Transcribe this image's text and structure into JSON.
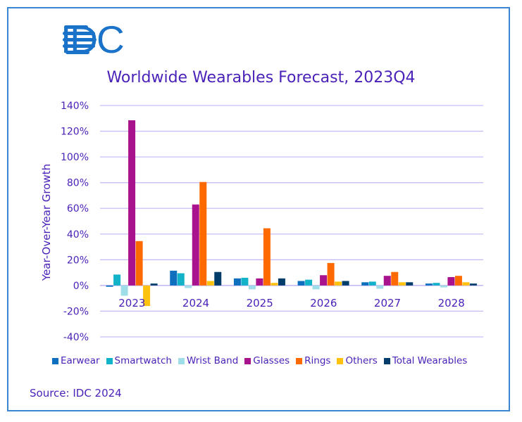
{
  "logo": {
    "text": "IDC",
    "color": "#1a73c8"
  },
  "chart_data": {
    "type": "bar",
    "title": "Worldwide Wearables Forecast, 2023Q4",
    "xlabel": "",
    "ylabel": "Year-Over-Year Growth",
    "ylim": [
      -40,
      140
    ],
    "yticks": [
      140,
      120,
      100,
      80,
      60,
      40,
      20,
      0,
      -20,
      -40
    ],
    "ytick_labels": [
      "140%",
      "120%",
      "100%",
      "80%",
      "60%",
      "40%",
      "20%",
      "0%",
      "-20%",
      "-40%"
    ],
    "grid": true,
    "legend_position": "bottom",
    "categories": [
      "2023",
      "2024",
      "2025",
      "2026",
      "2027",
      "2028"
    ],
    "series": [
      {
        "name": "Earwear",
        "color": "#0f6fbf",
        "values": [
          -1,
          11.5,
          5.5,
          3.5,
          2.5,
          1.5
        ]
      },
      {
        "name": "Smartwatch",
        "color": "#12b3c9",
        "values": [
          8.5,
          9.5,
          6,
          4.5,
          3,
          2
        ]
      },
      {
        "name": "Wrist Band",
        "color": "#9fdde8",
        "values": [
          -8,
          -2,
          -3,
          -3,
          -2.5,
          -1.5
        ]
      },
      {
        "name": "Glasses",
        "color": "#a8128c",
        "values": [
          128.5,
          63,
          5.5,
          8,
          7.5,
          6.5
        ]
      },
      {
        "name": "Rings",
        "color": "#ff6a00",
        "values": [
          34.5,
          80.5,
          44.5,
          17.5,
          10.5,
          7.5
        ]
      },
      {
        "name": "Others",
        "color": "#ffc20e",
        "values": [
          -16,
          3.5,
          2,
          3,
          2.5,
          2.5
        ]
      },
      {
        "name": "Total Wearables",
        "color": "#003d6b",
        "values": [
          1.5,
          10.5,
          5.5,
          3.5,
          2.5,
          1.5
        ]
      }
    ]
  },
  "source": "Source: IDC 2024"
}
